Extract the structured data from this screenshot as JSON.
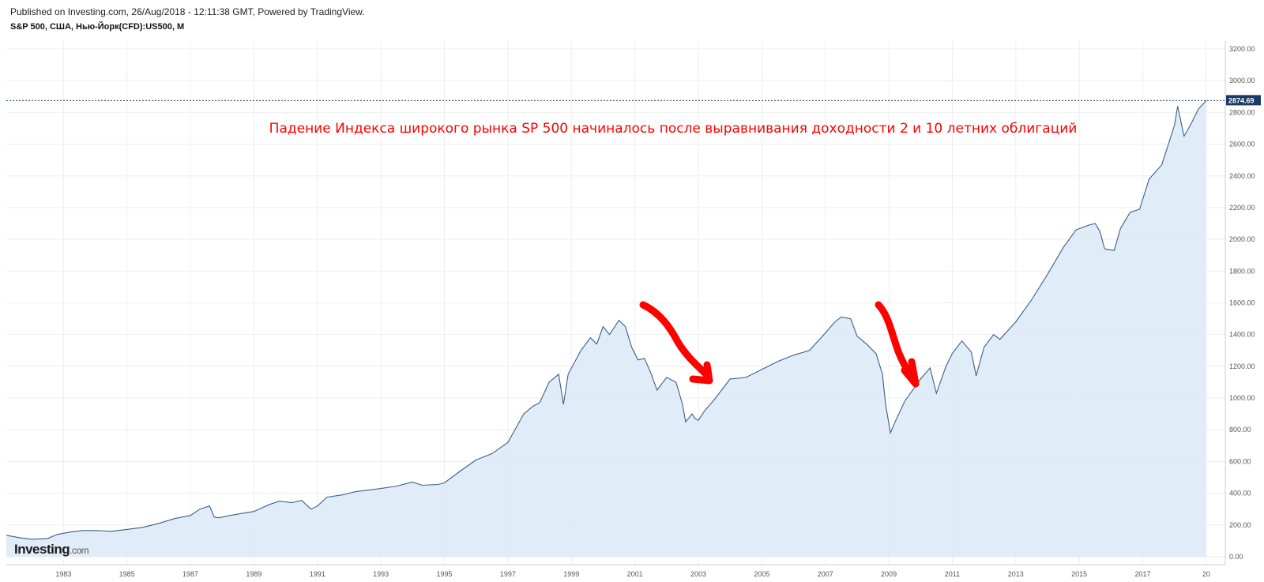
{
  "header": {
    "published": "Published on Investing.com, 26/Aug/2018 - 12:11:38 GMT, Powered by TradingView.",
    "symbol": "S&P 500, США, Нью-Йорк(CFD):US500, M"
  },
  "logo": {
    "main": "Investing",
    "suffix": ".com"
  },
  "colors": {
    "line": "#3b5f86",
    "area": "#dce9f8",
    "grid": "#eeeeee",
    "last_price_bg": "#1b3b66",
    "annotation": "#ff0000",
    "arrow": "#ff0000"
  },
  "chart_data": {
    "type": "area",
    "title": "",
    "xlabel": "",
    "ylabel": "",
    "ylim": [
      -50,
      3250
    ],
    "xlim": [
      1981.2,
      2019.6
    ],
    "grid": true,
    "x_ticks": [
      "1983",
      "1985",
      "1987",
      "1989",
      "1991",
      "1993",
      "1995",
      "1997",
      "1999",
      "2001",
      "2003",
      "2005",
      "2007",
      "2009",
      "2011",
      "2013",
      "2015",
      "2017",
      "20"
    ],
    "y_ticks": [
      "0.00",
      "200.00",
      "400.00",
      "600.00",
      "800.00",
      "1000.00",
      "1200.00",
      "1400.00",
      "1600.00",
      "1800.00",
      "2000.00",
      "2200.00",
      "2400.00",
      "2600.00",
      "2800.00",
      "3000.00",
      "3200.00"
    ],
    "last_value": "2874.69",
    "annotation": "Падение Индекса широкого рынка SP 500 начиналось после выравнивания доходности 2 и 10 летних облигаций",
    "series": [
      {
        "x": [
          1981.2,
          1981.6,
          1982.0,
          1982.5,
          1982.8,
          1983.2,
          1983.6,
          1984.0,
          1984.5,
          1985.0,
          1985.5,
          1986.0,
          1986.5,
          1987.0,
          1987.3,
          1987.6,
          1987.75,
          1987.9,
          1988.2,
          1988.6,
          1989.0,
          1989.5,
          1989.8,
          1990.2,
          1990.5,
          1990.8,
          1991.0,
          1991.3,
          1991.8,
          1992.2,
          1992.6,
          1993.0,
          1993.5,
          1994.0,
          1994.3,
          1994.8,
          1995.0,
          1995.5,
          1996.0,
          1996.5,
          1997.0,
          1997.5,
          1997.8,
          1998.0,
          1998.3,
          1998.6,
          1998.75,
          1998.9,
          1999.3,
          1999.6,
          1999.8,
          2000.0,
          2000.2,
          2000.5,
          2000.7,
          2000.9,
          2001.1,
          2001.3,
          2001.5,
          2001.7,
          2002.0,
          2002.3,
          2002.5,
          2002.6,
          2002.8,
          2002.9,
          2003.0,
          2003.2,
          2003.5,
          2004.0,
          2004.5,
          2005.0,
          2005.5,
          2006.0,
          2006.5,
          2007.0,
          2007.3,
          2007.5,
          2007.8,
          2008.0,
          2008.3,
          2008.6,
          2008.8,
          2008.9,
          2009.05,
          2009.2,
          2009.5,
          2010.0,
          2010.3,
          2010.5,
          2010.8,
          2011.0,
          2011.3,
          2011.6,
          2011.75,
          2012.0,
          2012.3,
          2012.5,
          2013.0,
          2013.5,
          2014.0,
          2014.5,
          2014.9,
          2015.3,
          2015.5,
          2015.65,
          2015.8,
          2016.1,
          2016.3,
          2016.6,
          2016.9,
          2017.2,
          2017.6,
          2018.0,
          2018.1,
          2018.3,
          2018.5,
          2018.75,
          2019.0
        ],
        "values": [
          135,
          120,
          110,
          115,
          140,
          155,
          165,
          165,
          160,
          172,
          185,
          210,
          240,
          260,
          300,
          320,
          250,
          245,
          258,
          272,
          285,
          330,
          350,
          340,
          355,
          300,
          320,
          375,
          390,
          410,
          420,
          430,
          445,
          470,
          450,
          455,
          465,
          540,
          610,
          650,
          720,
          900,
          950,
          970,
          1100,
          1150,
          960,
          1150,
          1300,
          1380,
          1340,
          1450,
          1400,
          1490,
          1450,
          1320,
          1240,
          1250,
          1160,
          1050,
          1130,
          1100,
          960,
          850,
          900,
          870,
          860,
          920,
          990,
          1120,
          1130,
          1180,
          1230,
          1270,
          1300,
          1410,
          1480,
          1510,
          1500,
          1390,
          1340,
          1280,
          1150,
          960,
          780,
          850,
          980,
          1120,
          1190,
          1030,
          1200,
          1280,
          1360,
          1290,
          1140,
          1320,
          1400,
          1370,
          1480,
          1620,
          1780,
          1950,
          2060,
          2090,
          2100,
          2050,
          1940,
          1930,
          2070,
          2170,
          2190,
          2380,
          2470,
          2720,
          2840,
          2650,
          2720,
          2820,
          2874.69
        ]
      }
    ]
  }
}
